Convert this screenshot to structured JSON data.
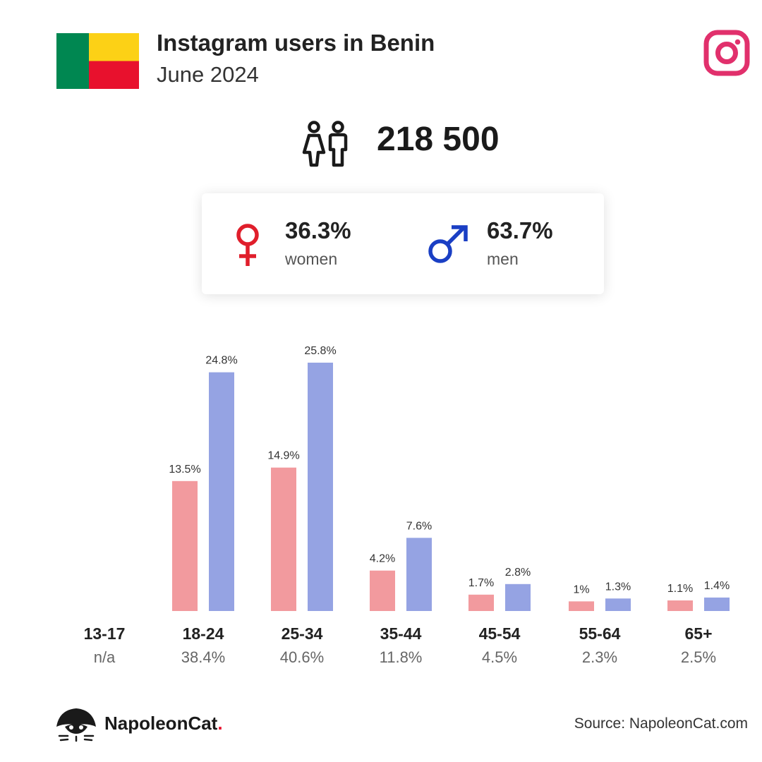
{
  "header": {
    "title": "Instagram users in Benin",
    "subtitle": "June 2024"
  },
  "flag": {
    "green": "#008751",
    "yellow": "#fcd116",
    "red": "#e8112d"
  },
  "icons": {
    "platform": "instagram-icon",
    "people": "people-icon",
    "female": "female-symbol-icon",
    "male": "male-symbol-icon",
    "logo": "napoleoncat-logo-icon"
  },
  "total": {
    "value": "218 500"
  },
  "gender": {
    "women": {
      "pct": "36.3%",
      "label": "women",
      "color": "#e01e2b"
    },
    "men": {
      "pct": "63.7%",
      "label": "men",
      "color": "#1a3fc4"
    }
  },
  "chart_data": {
    "type": "bar",
    "categories": [
      "13-17",
      "18-24",
      "25-34",
      "35-44",
      "45-54",
      "55-64",
      "65+"
    ],
    "totals": [
      "n/a",
      "38.4%",
      "40.6%",
      "11.8%",
      "4.5%",
      "2.3%",
      "2.5%"
    ],
    "series": [
      {
        "color": "#f29a9e",
        "values": [
          null,
          13.5,
          14.9,
          4.2,
          1.7,
          1.0,
          1.1
        ],
        "labels": [
          "",
          "13.5%",
          "14.9%",
          "4.2%",
          "1.7%",
          "1%",
          "1.1%"
        ]
      },
      {
        "color": "#95a3e3",
        "values": [
          null,
          24.8,
          25.8,
          7.6,
          2.8,
          1.3,
          1.4
        ],
        "labels": [
          "",
          "24.8%",
          "25.8%",
          "7.6%",
          "2.8%",
          "1.3%",
          "1.4%"
        ]
      }
    ],
    "ylim": [
      0,
      25.8
    ],
    "grid": false,
    "legend": "none"
  },
  "footer": {
    "brand": "NapoleonCat",
    "brand_dot": ".",
    "source": "Source: NapoleonCat.com"
  }
}
